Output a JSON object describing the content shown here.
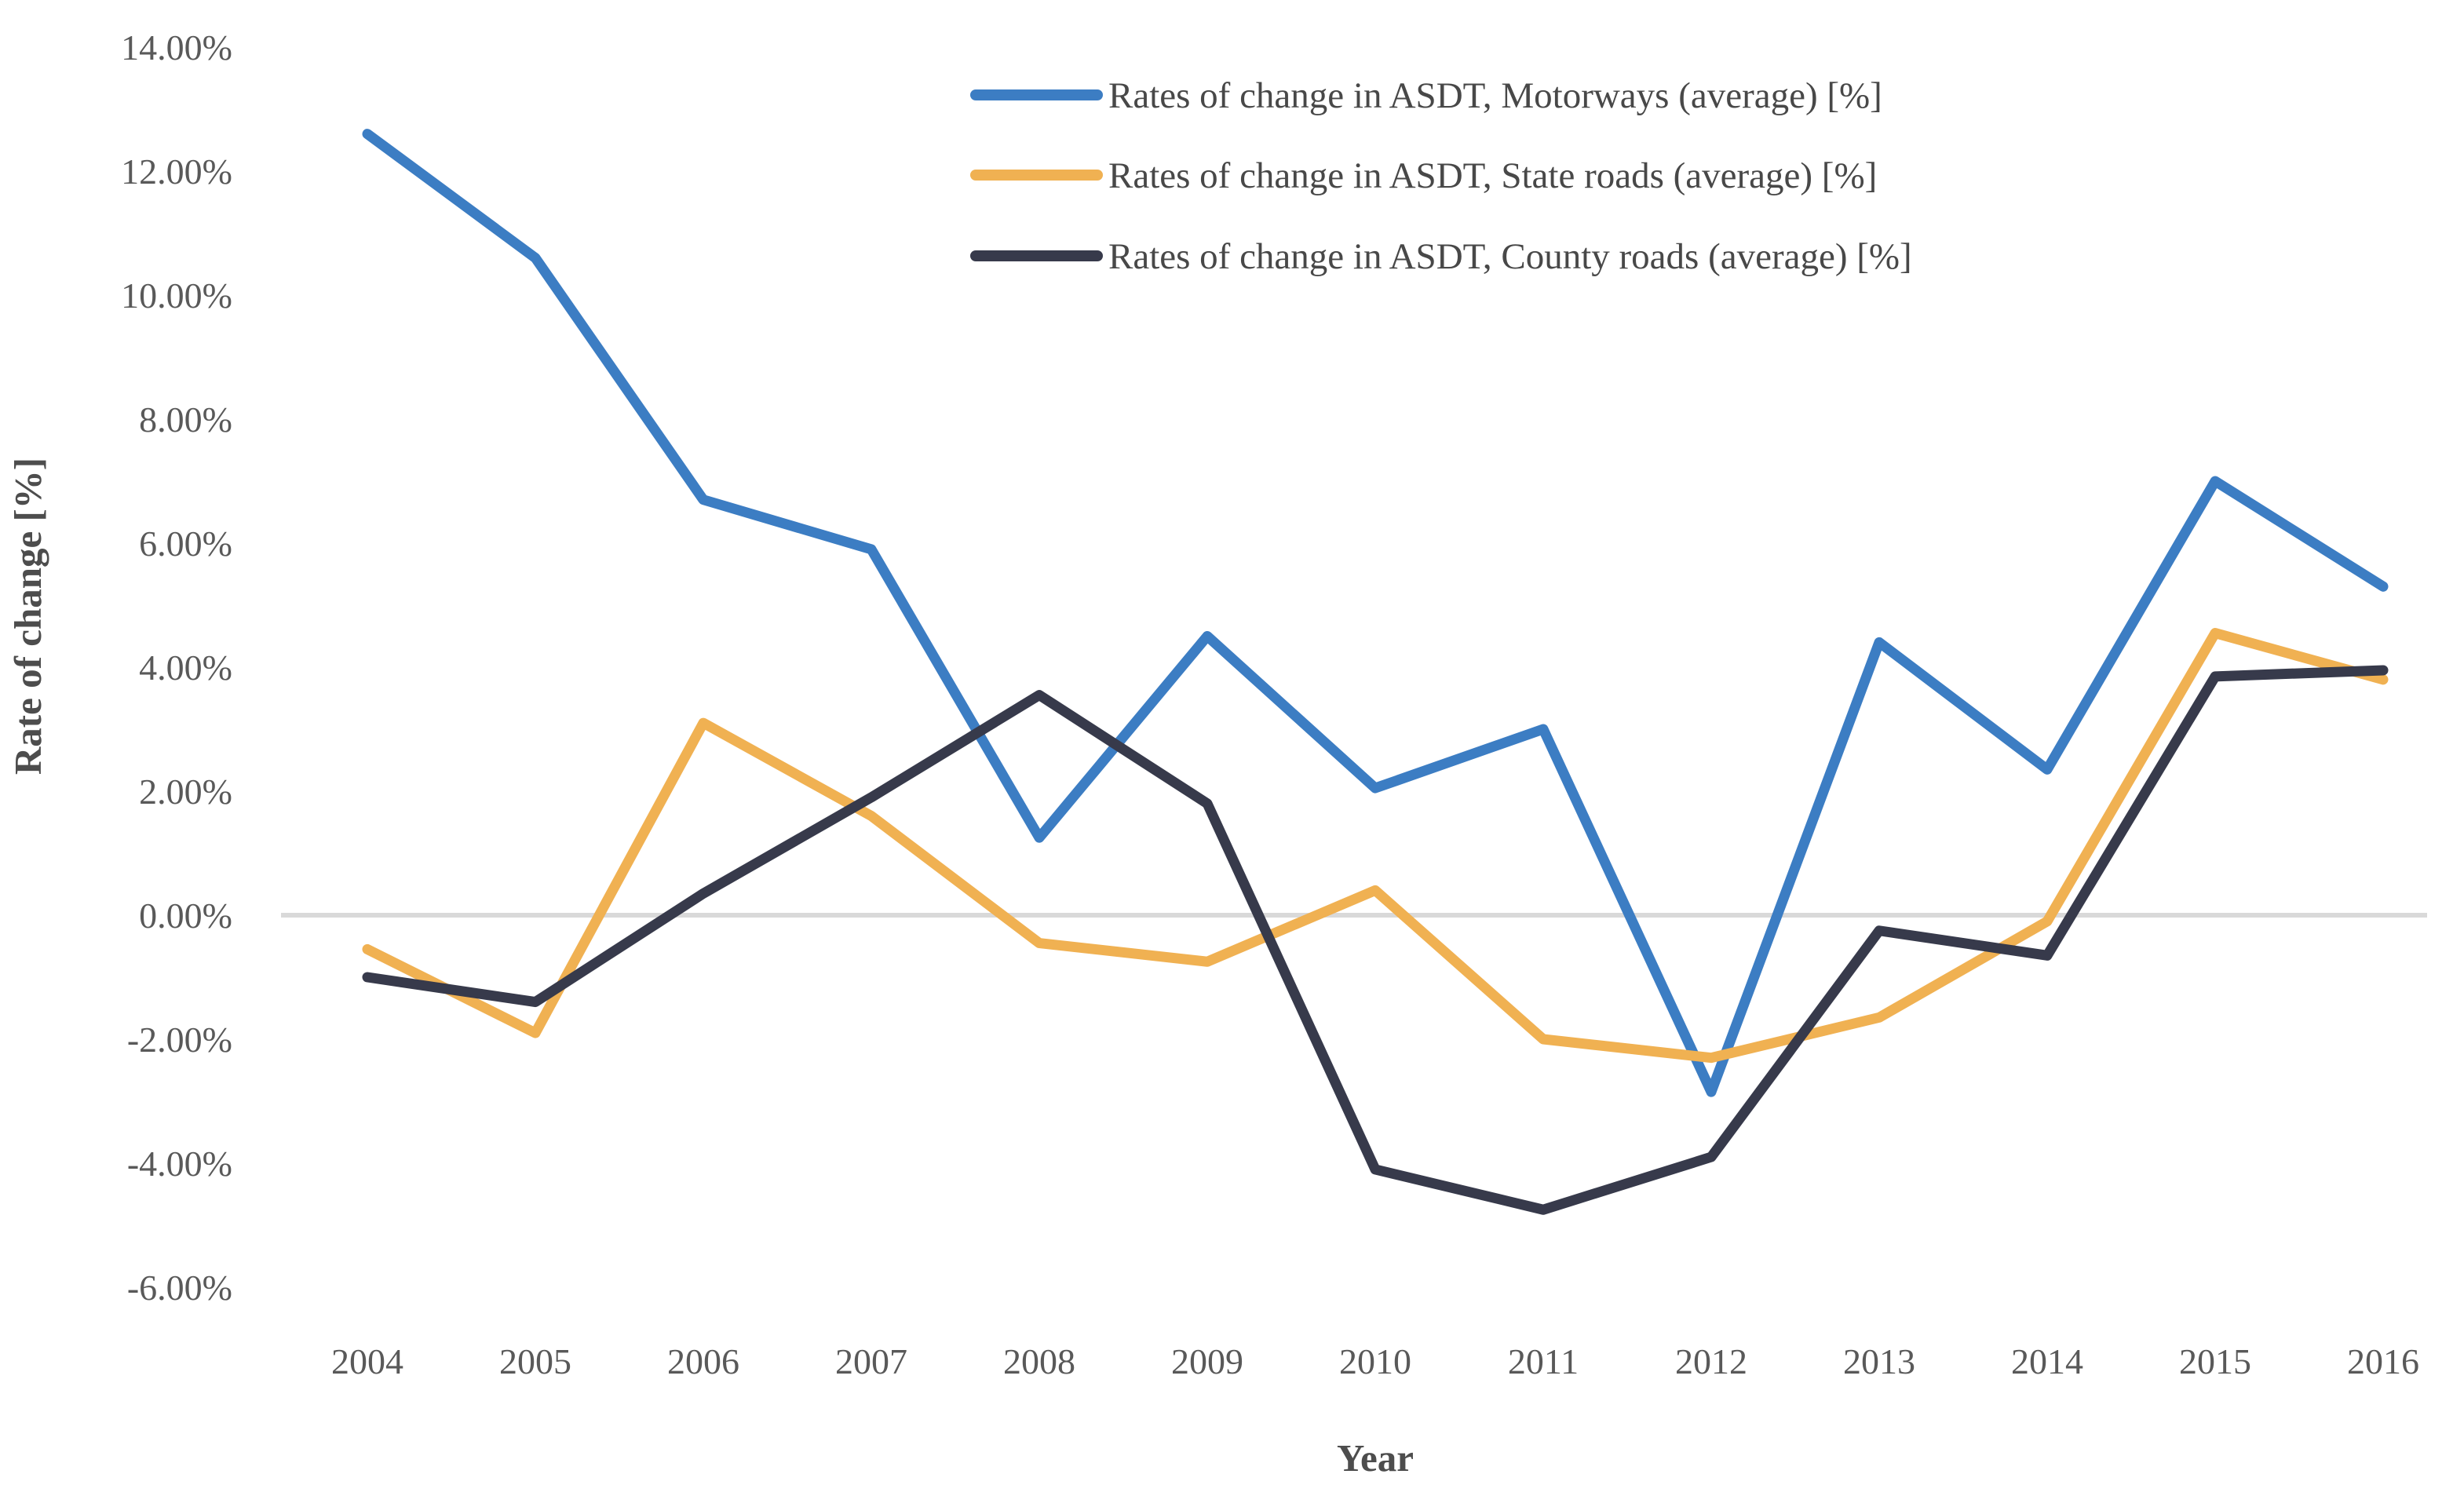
{
  "chart_data": {
    "type": "line",
    "title": "",
    "xlabel": "Year",
    "ylabel": "Rate of change [%]",
    "x": [
      2004,
      2005,
      2006,
      2007,
      2008,
      2009,
      2010,
      2011,
      2012,
      2013,
      2014,
      2015,
      2016
    ],
    "ylim": [
      -6,
      14
    ],
    "ytick_step": 2,
    "ytick_labels": [
      "14.00%",
      "12.00%",
      "10.00%",
      "8.00%",
      "6.00%",
      "4.00%",
      "2.00%",
      "0.00%",
      "-2.00%",
      "-4.00%",
      "-6.00%"
    ],
    "grid": "zero-line-only",
    "legend_position": "top-right-inside",
    "series": [
      {
        "name": "Rates of change in ASDT, Motorways (average) [%]",
        "color": "#3C7DC3",
        "values": [
          12.6,
          10.6,
          6.7,
          5.9,
          1.25,
          4.5,
          2.05,
          3.0,
          -2.85,
          4.4,
          2.35,
          7.0,
          5.3
        ]
      },
      {
        "name": "Rates of change in ASDT, State roads (average) [%]",
        "color": "#F0B152",
        "values": [
          -0.55,
          -1.9,
          3.1,
          1.6,
          -0.45,
          -0.75,
          0.4,
          -2.0,
          -2.3,
          -1.65,
          -0.1,
          4.55,
          3.8
        ]
      },
      {
        "name": "Rates of change in ASDT, County roads (average) [%]",
        "color": "#373A4B",
        "values": [
          -1.0,
          -1.4,
          0.35,
          1.9,
          3.55,
          1.8,
          -4.1,
          -4.75,
          -3.9,
          -0.25,
          -0.65,
          3.85,
          3.95
        ]
      }
    ],
    "zero_line_color": "#D9D9D9",
    "tick_text_color": "#595959"
  }
}
